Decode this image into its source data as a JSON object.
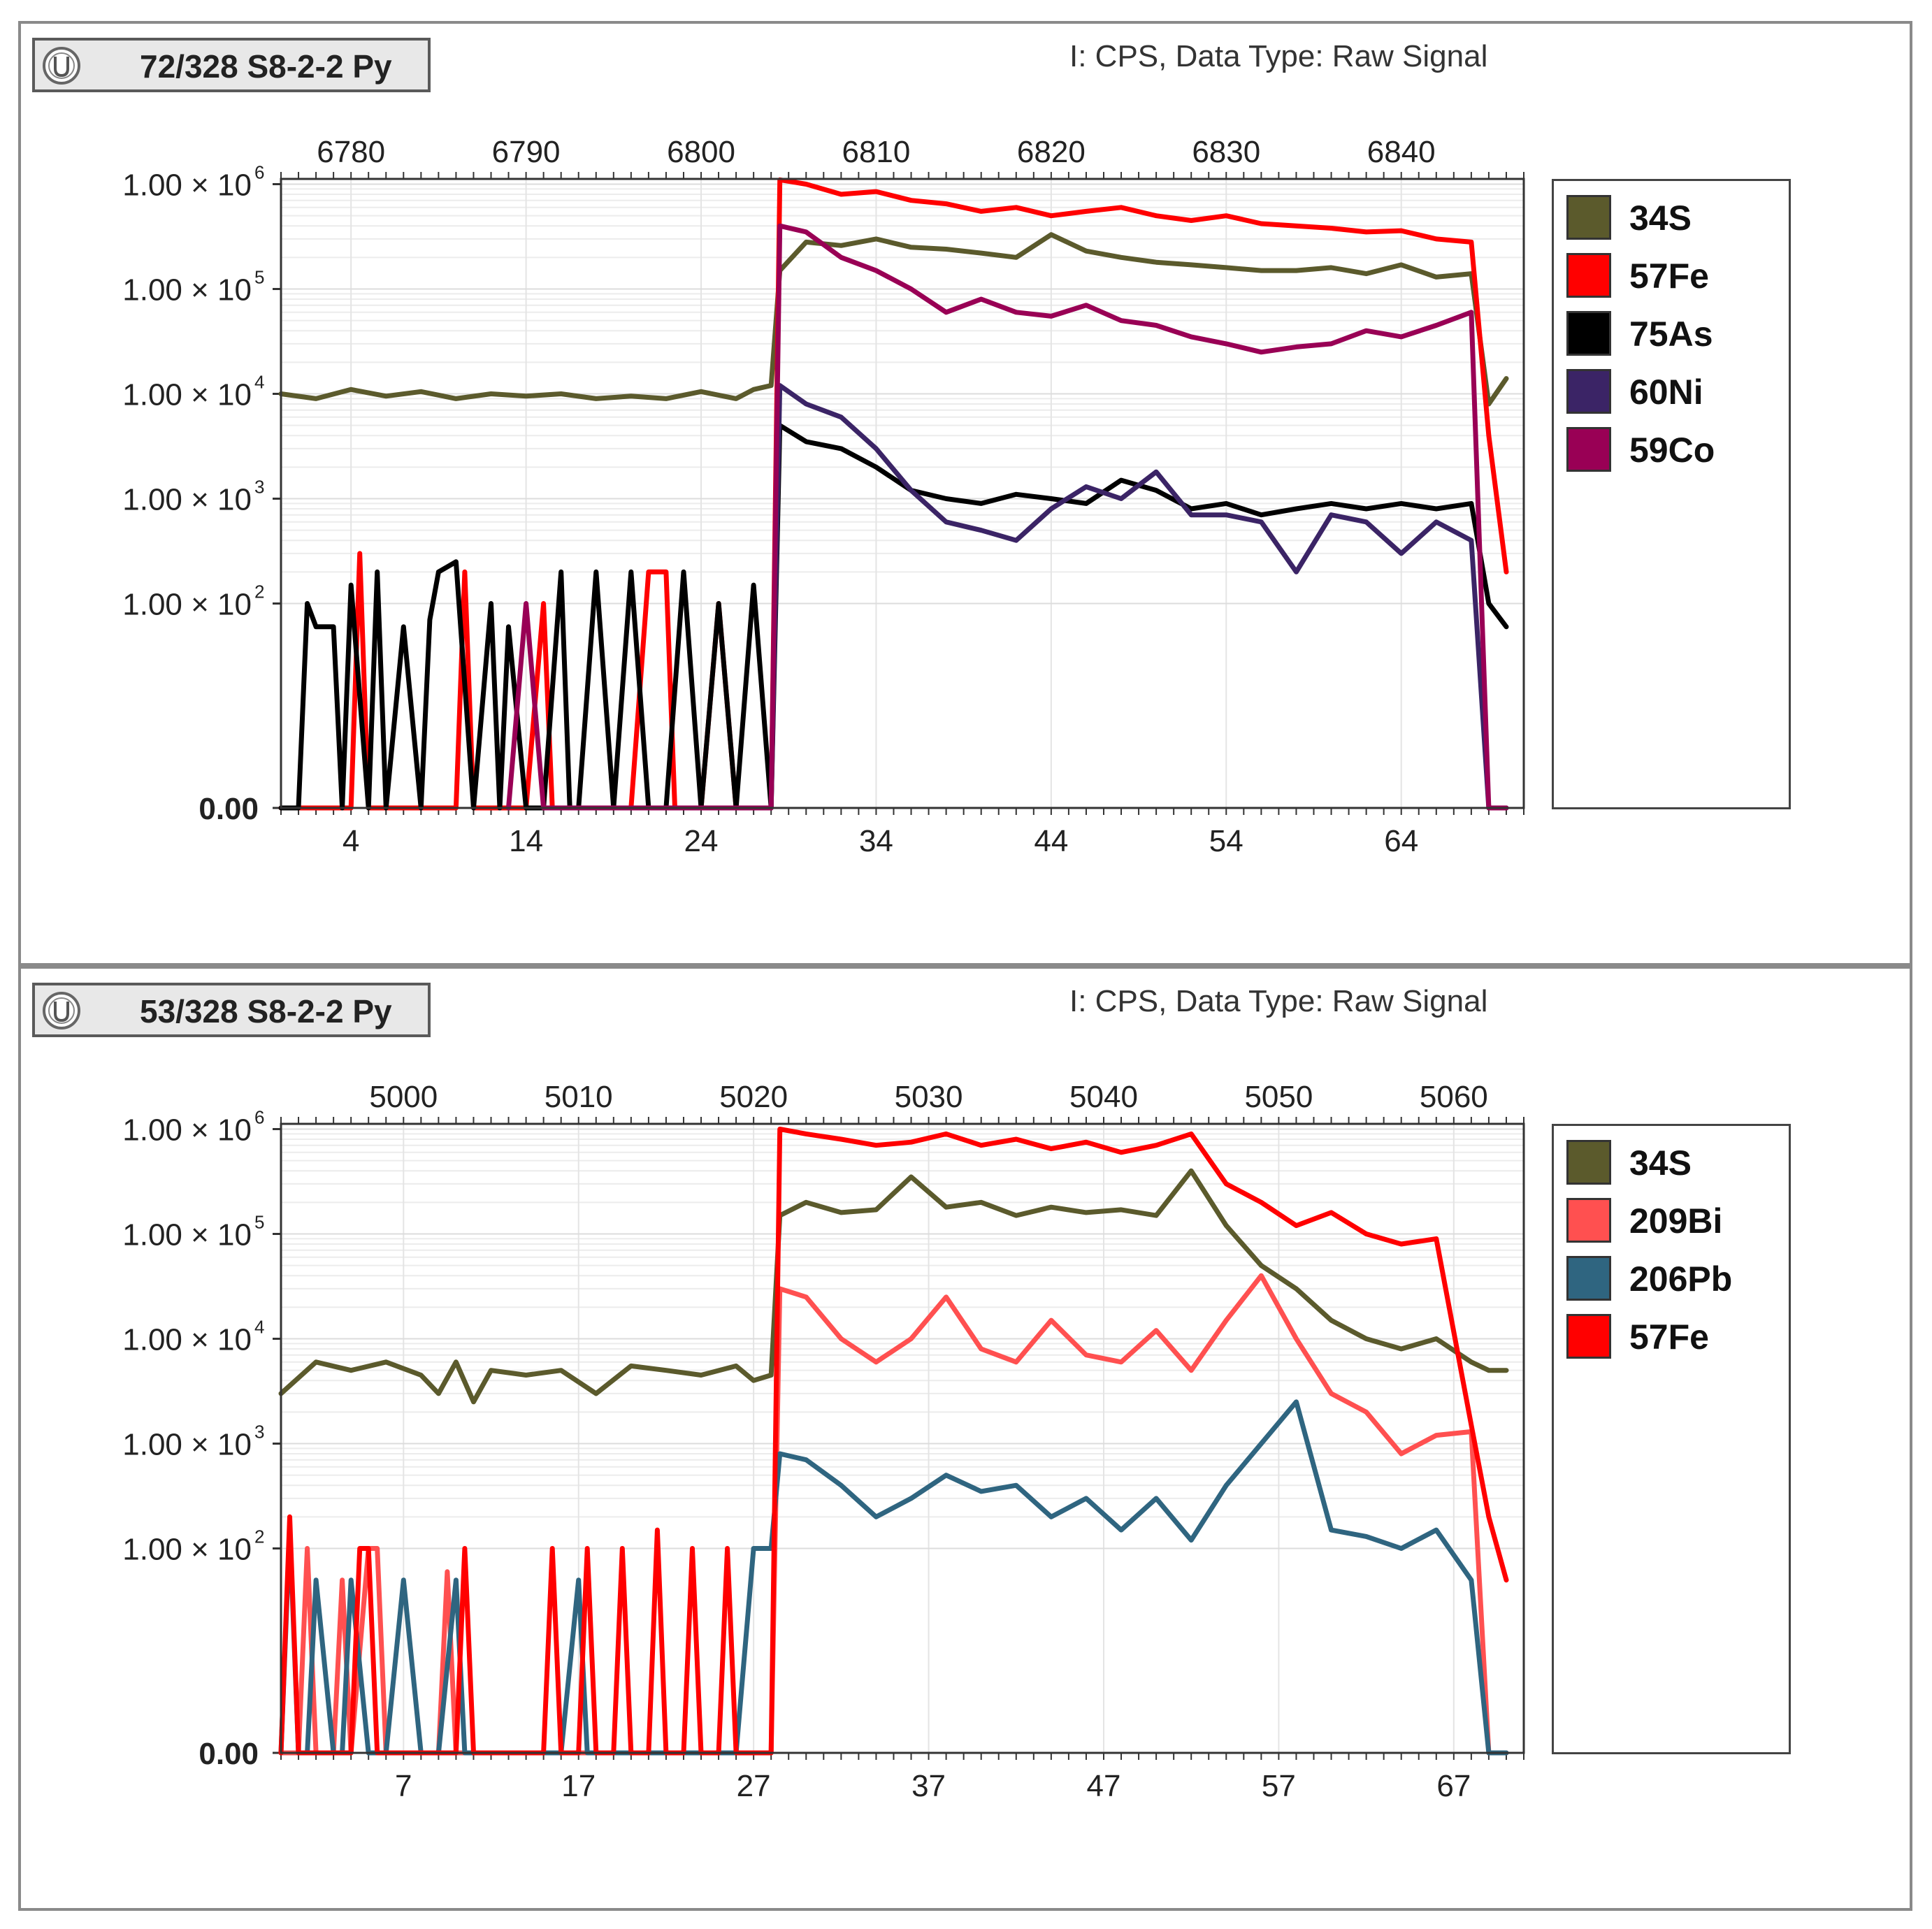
{
  "panels": [
    {
      "sample_label": "72/328 S8-2-2 Py",
      "data_type": "I: CPS, Data Type: Raw Signal"
    },
    {
      "sample_label": "53/328 S8-2-2 Py",
      "data_type": "I: CPS, Data Type: Raw Signal"
    }
  ],
  "chart_data": [
    {
      "type": "line",
      "title": "72/328 S8-2-2 Py",
      "subtitle": "I: CPS, Data Type: Raw Signal",
      "y_scale": "log (0 at baseline)",
      "y_ticks": [
        {
          "value": 0,
          "label": "0.00"
        },
        {
          "value": 100,
          "label": "1.00 × 10",
          "exp": "2"
        },
        {
          "value": 1000,
          "label": "1.00 × 10",
          "exp": "3"
        },
        {
          "value": 10000,
          "label": "1.00 × 10",
          "exp": "4"
        },
        {
          "value": 100000,
          "label": "1.00 × 10",
          "exp": "5"
        },
        {
          "value": 1000000,
          "label": "1.00 × 10",
          "exp": "6"
        }
      ],
      "x_range": [
        0,
        71
      ],
      "x_ticks": [
        "4",
        "14",
        "24",
        "34",
        "44",
        "54",
        "64"
      ],
      "top_axis_ticks": [
        "6780",
        "6790",
        "6800",
        "6810",
        "6820",
        "6830",
        "6840"
      ],
      "legend_position": "right",
      "series": [
        {
          "name": "34S",
          "color": "#5b5a2c",
          "x": [
            0,
            2,
            4,
            6,
            8,
            10,
            12,
            14,
            16,
            18,
            20,
            22,
            24,
            26,
            27,
            28,
            28.5,
            30,
            32,
            34,
            36,
            38,
            40,
            42,
            44,
            46,
            48,
            50,
            52,
            54,
            56,
            58,
            60,
            62,
            64,
            66,
            68,
            69,
            70
          ],
          "y": [
            10000,
            9000,
            11000,
            9500,
            10500,
            9000,
            10000,
            9500,
            10000,
            9000,
            9500,
            9000,
            10500,
            9000,
            11000,
            12000,
            150000,
            280000,
            260000,
            300000,
            250000,
            240000,
            220000,
            200000,
            330000,
            230000,
            200000,
            180000,
            170000,
            160000,
            150000,
            150000,
            160000,
            140000,
            170000,
            130000,
            140000,
            8000,
            14000
          ]
        },
        {
          "name": "57Fe",
          "color": "#ff0000",
          "x": [
            0,
            4,
            4.5,
            5,
            6,
            10,
            10.5,
            11,
            13,
            14,
            15,
            15.5,
            16,
            20,
            21,
            22,
            22.5,
            23,
            24,
            25,
            26,
            27,
            28,
            28.5,
            30,
            32,
            34,
            36,
            38,
            40,
            42,
            44,
            46,
            48,
            50,
            52,
            54,
            56,
            58,
            60,
            62,
            64,
            66,
            68,
            69,
            70
          ],
          "y": [
            0,
            0,
            300,
            0,
            0,
            0,
            200,
            0,
            0,
            0,
            100,
            0,
            0,
            0,
            200,
            200,
            0,
            0,
            0,
            100,
            0,
            0,
            0,
            1100000,
            1000000,
            800000,
            850000,
            700000,
            650000,
            550000,
            600000,
            500000,
            550000,
            600000,
            500000,
            450000,
            500000,
            420000,
            400000,
            380000,
            350000,
            360000,
            300000,
            280000,
            4000,
            200
          ]
        },
        {
          "name": "75As",
          "color": "#000000",
          "x": [
            0,
            1,
            1.5,
            2,
            3,
            3.5,
            4,
            5,
            5.5,
            6,
            7,
            8,
            8.5,
            9,
            10,
            11,
            12,
            12.5,
            13,
            14,
            15,
            16,
            16.5,
            17,
            18,
            19,
            20,
            21,
            22,
            23,
            24,
            25,
            26,
            27,
            28,
            28.5,
            30,
            32,
            34,
            36,
            38,
            40,
            42,
            44,
            46,
            48,
            50,
            52,
            54,
            56,
            58,
            60,
            62,
            64,
            66,
            68,
            69,
            70
          ],
          "y": [
            0,
            0,
            100,
            60,
            60,
            0,
            150,
            0,
            200,
            0,
            60,
            0,
            70,
            200,
            250,
            0,
            100,
            0,
            60,
            0,
            0,
            200,
            0,
            0,
            200,
            0,
            200,
            0,
            0,
            200,
            0,
            100,
            0,
            150,
            0,
            5000,
            3500,
            3000,
            2000,
            1200,
            1000,
            900,
            1100,
            1000,
            900,
            1500,
            1200,
            800,
            900,
            700,
            800,
            900,
            800,
            900,
            800,
            900,
            100,
            60
          ]
        },
        {
          "name": "60Ni",
          "color": "#3b2466",
          "x": [
            28,
            28.5,
            30,
            32,
            34,
            36,
            38,
            40,
            42,
            44,
            46,
            48,
            50,
            52,
            54,
            56,
            58,
            60,
            62,
            64,
            66,
            68,
            69,
            70
          ],
          "y": [
            0,
            12000,
            8000,
            6000,
            3000,
            1200,
            600,
            500,
            400,
            800,
            1300,
            1000,
            1800,
            700,
            700,
            600,
            200,
            700,
            600,
            300,
            600,
            400,
            0,
            0
          ]
        },
        {
          "name": "59Co",
          "color": "#990055",
          "x": [
            13,
            14,
            15,
            16,
            28,
            28.5,
            30,
            32,
            34,
            36,
            38,
            40,
            42,
            44,
            46,
            48,
            50,
            52,
            54,
            56,
            58,
            60,
            62,
            64,
            66,
            68,
            69,
            70
          ],
          "y": [
            0,
            100,
            0,
            0,
            0,
            400000,
            350000,
            200000,
            150000,
            100000,
            60000,
            80000,
            60000,
            55000,
            70000,
            50000,
            45000,
            35000,
            30000,
            25000,
            28000,
            30000,
            40000,
            35000,
            45000,
            60000,
            0,
            0
          ]
        }
      ]
    },
    {
      "type": "line",
      "title": "53/328 S8-2-2 Py",
      "subtitle": "I: CPS, Data Type: Raw Signal",
      "y_scale": "log (0 at baseline)",
      "y_ticks": [
        {
          "value": 0,
          "label": "0.00"
        },
        {
          "value": 100,
          "label": "1.00 × 10",
          "exp": "2"
        },
        {
          "value": 1000,
          "label": "1.00 × 10",
          "exp": "3"
        },
        {
          "value": 10000,
          "label": "1.00 × 10",
          "exp": "4"
        },
        {
          "value": 100000,
          "label": "1.00 × 10",
          "exp": "5"
        },
        {
          "value": 1000000,
          "label": "1.00 × 10",
          "exp": "6"
        }
      ],
      "x_range": [
        0,
        71
      ],
      "x_ticks": [
        "7",
        "17",
        "27",
        "37",
        "47",
        "57",
        "67"
      ],
      "top_axis_ticks": [
        "5000",
        "5010",
        "5020",
        "5030",
        "5040",
        "5050",
        "5060"
      ],
      "legend_position": "right",
      "series": [
        {
          "name": "34S",
          "color": "#5b5a2c",
          "x": [
            0,
            2,
            4,
            6,
            8,
            9,
            10,
            11,
            12,
            14,
            16,
            18,
            20,
            22,
            24,
            26,
            27,
            28,
            28.5,
            30,
            32,
            34,
            36,
            38,
            40,
            42,
            44,
            46,
            48,
            50,
            52,
            54,
            56,
            58,
            60,
            62,
            64,
            66,
            68,
            69,
            70
          ],
          "y": [
            3000,
            6000,
            5000,
            6000,
            4500,
            3000,
            6000,
            2500,
            5000,
            4500,
            5000,
            3000,
            5500,
            5000,
            4500,
            5500,
            4000,
            4500,
            150000,
            200000,
            160000,
            170000,
            350000,
            180000,
            200000,
            150000,
            180000,
            160000,
            170000,
            150000,
            400000,
            120000,
            50000,
            30000,
            15000,
            10000,
            8000,
            10000,
            6000,
            5000,
            5000
          ]
        },
        {
          "name": "209Bi",
          "color": "#ff5050",
          "x": [
            0,
            1,
            1.5,
            2,
            3,
            3.5,
            4,
            5,
            5.5,
            6,
            9,
            9.5,
            10,
            28,
            28.5,
            30,
            32,
            34,
            36,
            38,
            40,
            42,
            44,
            46,
            48,
            50,
            52,
            54,
            56,
            58,
            60,
            62,
            64,
            66,
            68,
            69,
            70
          ],
          "y": [
            0,
            0,
            100,
            0,
            0,
            50,
            0,
            100,
            100,
            0,
            0,
            60,
            0,
            0,
            30000,
            25000,
            10000,
            6000,
            10000,
            25000,
            8000,
            6000,
            15000,
            7000,
            6000,
            12000,
            5000,
            15000,
            40000,
            10000,
            3000,
            2000,
            800,
            1200,
            1300,
            0,
            0
          ]
        },
        {
          "name": "206Pb",
          "color": "#2f6580",
          "x": [
            0,
            0.5,
            1,
            1.5,
            2,
            3,
            3.5,
            4,
            5,
            6,
            7,
            8,
            9,
            10,
            10.5,
            11,
            16,
            17,
            17.5,
            18,
            26,
            27,
            28,
            28.5,
            30,
            32,
            34,
            36,
            38,
            40,
            42,
            44,
            46,
            48,
            50,
            52,
            54,
            56,
            58,
            60,
            62,
            64,
            66,
            68,
            69,
            70
          ],
          "y": [
            0,
            150,
            0,
            0,
            50,
            0,
            0,
            50,
            0,
            0,
            50,
            0,
            0,
            50,
            0,
            0,
            0,
            50,
            0,
            0,
            0,
            100,
            100,
            800,
            700,
            400,
            200,
            300,
            500,
            350,
            400,
            200,
            300,
            150,
            300,
            120,
            400,
            1000,
            2500,
            150,
            130,
            100,
            150,
            50,
            0,
            0
          ]
        },
        {
          "name": "57Fe",
          "color": "#ff0000",
          "x": [
            0,
            0.5,
            1,
            4,
            4.5,
            5,
            5.5,
            6,
            10,
            10.5,
            11,
            15,
            15.5,
            16,
            17,
            17.5,
            18,
            19,
            19.5,
            20,
            21,
            21.5,
            22,
            23,
            23.5,
            24,
            25,
            25.5,
            26,
            28,
            28.5,
            30,
            32,
            34,
            36,
            38,
            40,
            42,
            44,
            46,
            48,
            50,
            52,
            54,
            56,
            58,
            60,
            62,
            64,
            66,
            68,
            69,
            70
          ],
          "y": [
            0,
            200,
            0,
            0,
            100,
            100,
            0,
            0,
            0,
            100,
            0,
            0,
            100,
            0,
            0,
            100,
            0,
            0,
            100,
            0,
            0,
            150,
            0,
            0,
            100,
            0,
            0,
            100,
            0,
            0,
            1000000,
            900000,
            800000,
            700000,
            750000,
            900000,
            700000,
            800000,
            650000,
            750000,
            600000,
            700000,
            900000,
            300000,
            200000,
            120000,
            160000,
            100000,
            80000,
            90000,
            1500,
            200,
            50
          ]
        }
      ]
    }
  ]
}
